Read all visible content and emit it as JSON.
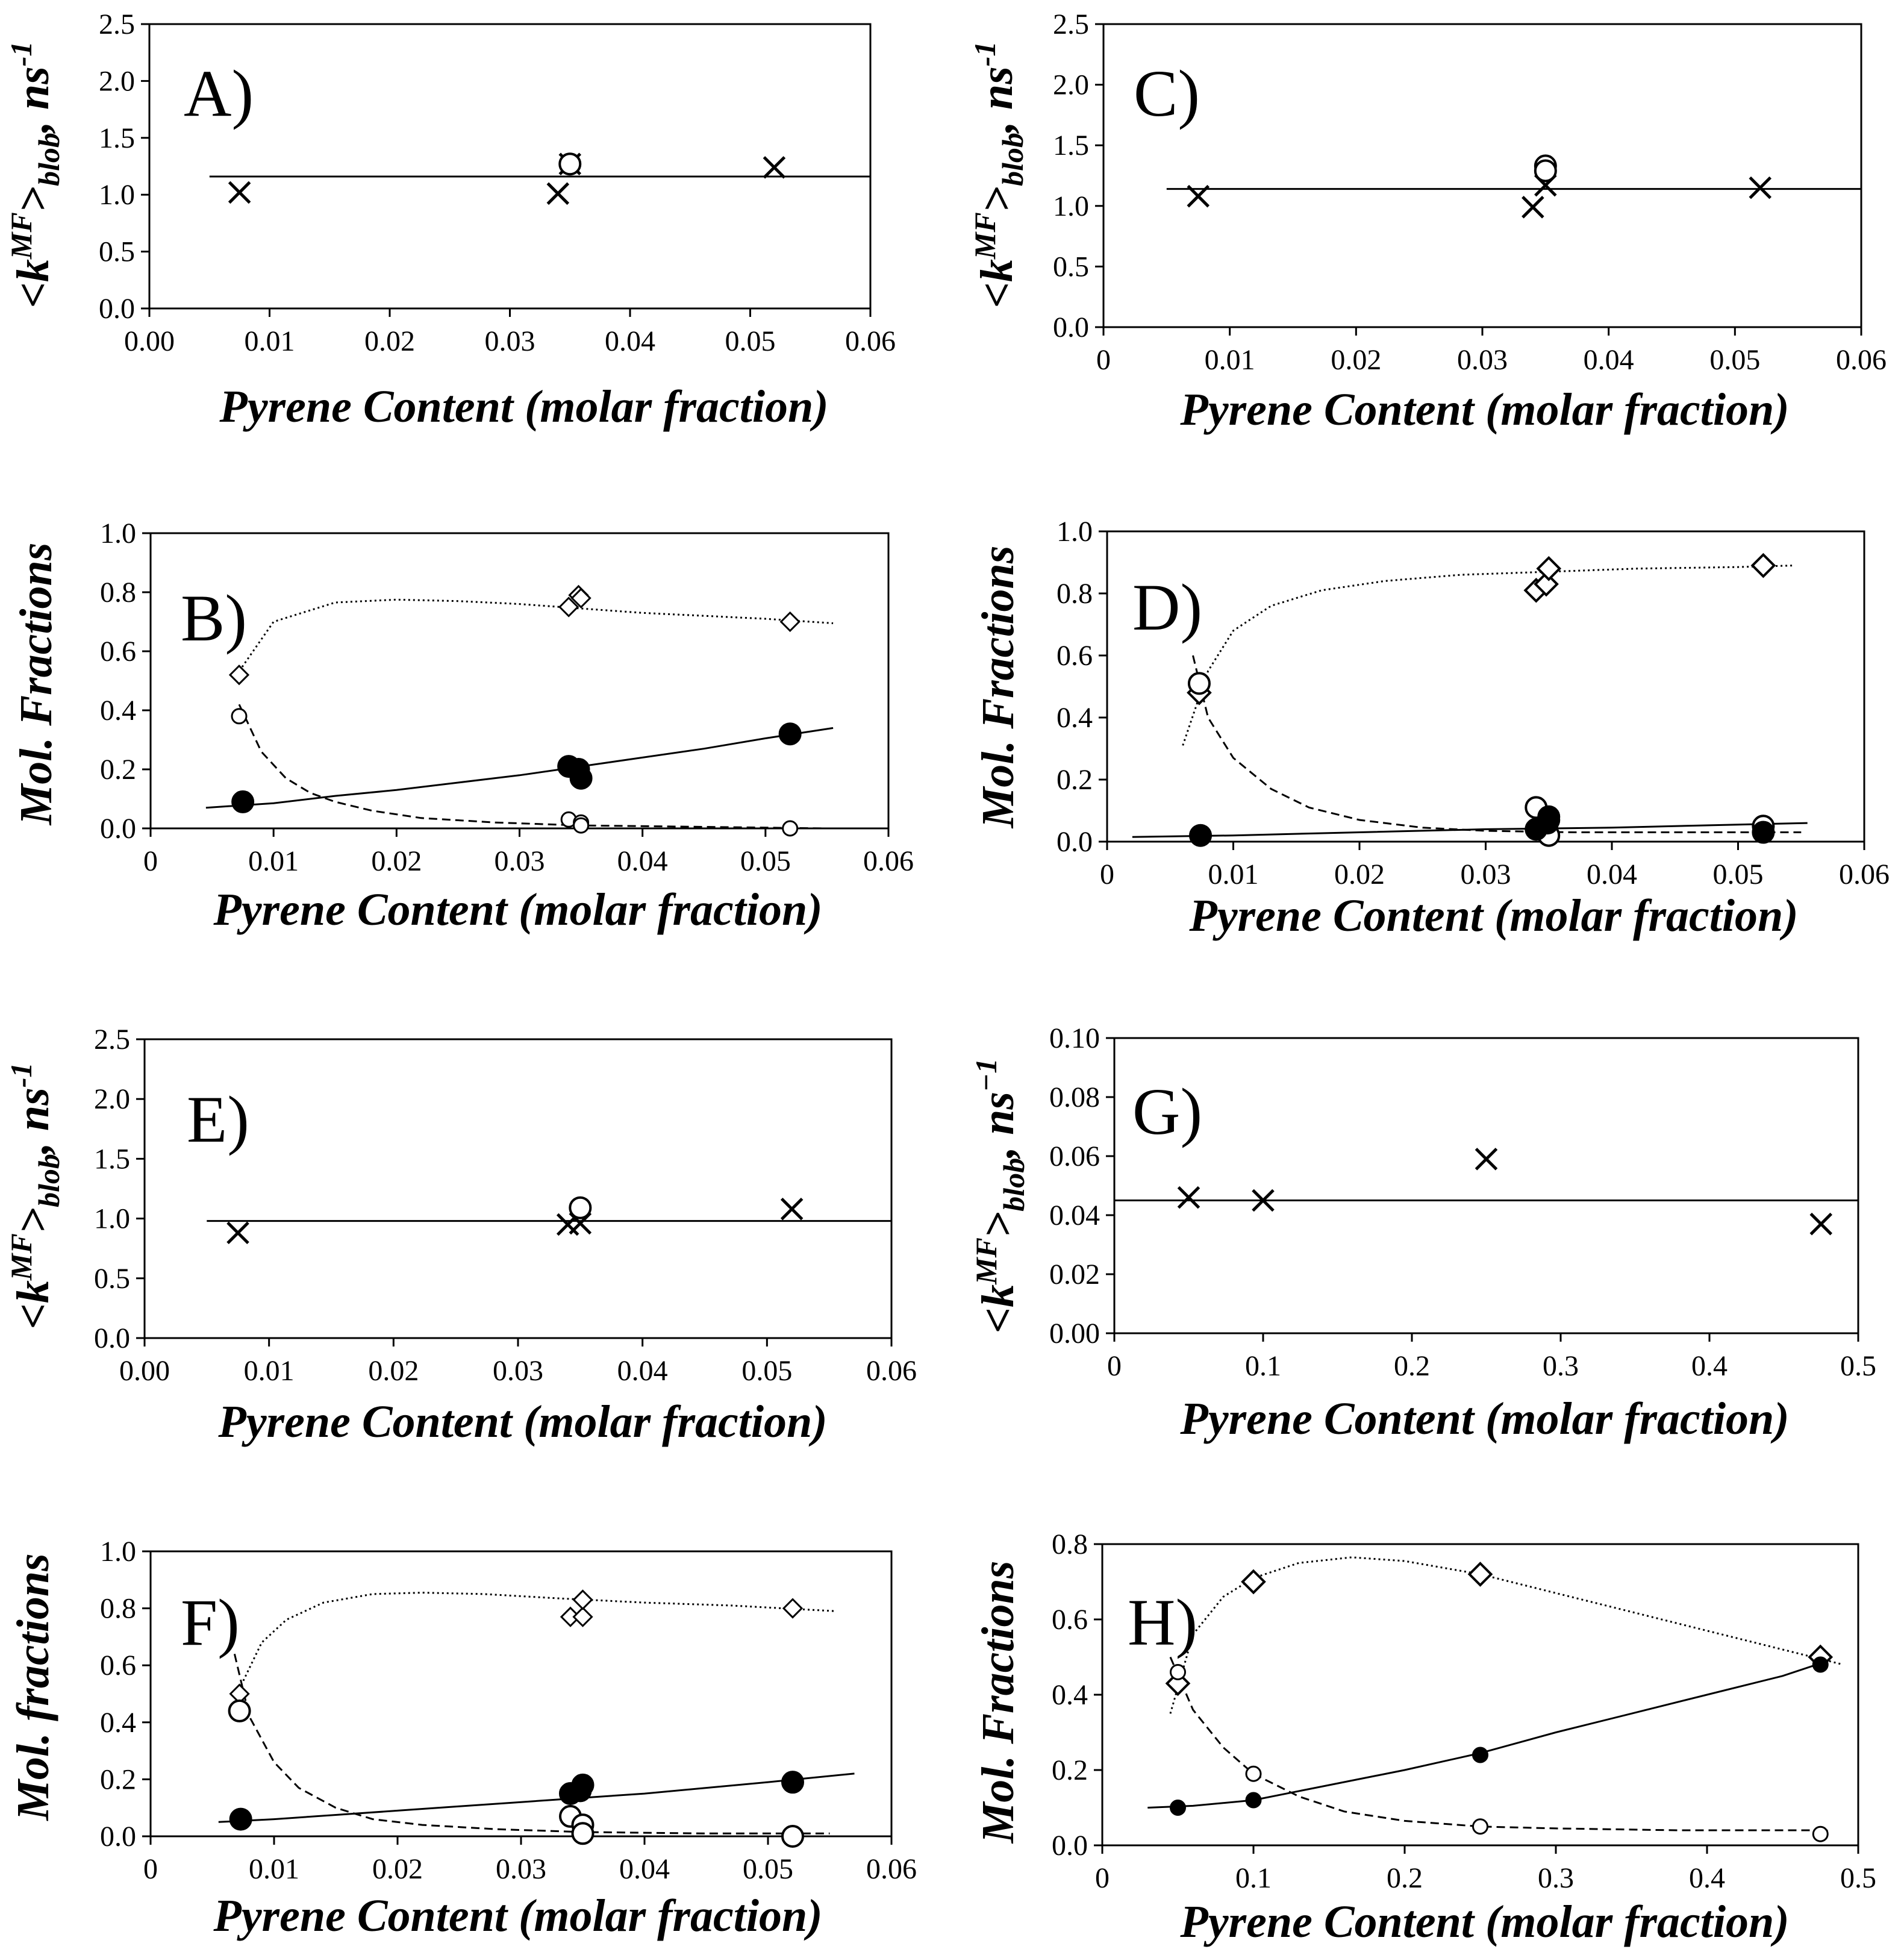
{
  "chart_data": [
    {
      "id": "A",
      "type": "scatter",
      "panel_label": "A)",
      "xlabel": "Pyrene Content (molar fraction)",
      "ylabel": {
        "pre": "<k",
        "sup": "MF",
        "mid": ">",
        "sub": "blob",
        "post": ", ns",
        "unit_sup": "-1"
      },
      "xlim": [
        0,
        0.06
      ],
      "ylim": [
        0,
        2.5
      ],
      "xticks": [
        "0.00",
        "0.01",
        "0.02",
        "0.03",
        "0.04",
        "0.05",
        "0.06"
      ],
      "yticks": [
        "0.0",
        "0.5",
        "1.0",
        "1.5",
        "2.0",
        "2.5"
      ],
      "series": [
        {
          "name": "x-points",
          "marker": "x",
          "x": [
            0.0075,
            0.034,
            0.035,
            0.052
          ],
          "y": [
            1.02,
            1.01,
            1.27,
            1.24
          ]
        },
        {
          "name": "open-circles",
          "marker": "circle-open",
          "x": [
            0.035
          ],
          "y": [
            1.27
          ]
        }
      ],
      "lines": [
        {
          "style": "solid",
          "x": [
            0.005,
            0.06
          ],
          "y": [
            1.16,
            1.16
          ]
        }
      ]
    },
    {
      "id": "C",
      "type": "scatter",
      "panel_label": "C)",
      "xlabel": "Pyrene Content (molar fraction)",
      "ylabel": {
        "pre": "<k",
        "sup": "MF",
        "mid": ">",
        "sub": "blob",
        "post": ", ns",
        "unit_sup": "-1"
      },
      "xlim": [
        0,
        0.06
      ],
      "ylim": [
        0,
        2.5
      ],
      "xticks": [
        "0",
        "0.01",
        "0.02",
        "0.03",
        "0.04",
        "0.05",
        "0.06"
      ],
      "yticks": [
        "0.0",
        "0.5",
        "1.0",
        "1.5",
        "2.0",
        "2.5"
      ],
      "series": [
        {
          "name": "x-points",
          "marker": "x",
          "x": [
            0.0075,
            0.034,
            0.035,
            0.052
          ],
          "y": [
            1.08,
            0.99,
            1.17,
            1.15
          ]
        },
        {
          "name": "open-circles",
          "marker": "circle-open",
          "x": [
            0.035,
            0.035
          ],
          "y": [
            1.33,
            1.29
          ]
        }
      ],
      "lines": [
        {
          "style": "solid",
          "x": [
            0.005,
            0.06
          ],
          "y": [
            1.14,
            1.14
          ]
        }
      ]
    },
    {
      "id": "B",
      "type": "scatter",
      "panel_label": "B)",
      "xlabel": "Pyrene Content (molar fraction)",
      "ylabel": {
        "pre": "Mol. Fractions"
      },
      "xlim": [
        0,
        0.06
      ],
      "ylim": [
        0,
        1.0
      ],
      "xticks": [
        "0",
        "0.01",
        "0.02",
        "0.03",
        "0.04",
        "0.05",
        "0.06"
      ],
      "yticks": [
        "0.0",
        "0.2",
        "0.4",
        "0.6",
        "0.8",
        "1.0"
      ],
      "series": [
        {
          "name": "diamonds",
          "marker": "diamond-open-small",
          "x": [
            0.0072,
            0.034,
            0.0348,
            0.035,
            0.052
          ],
          "y": [
            0.52,
            0.75,
            0.79,
            0.78,
            0.7
          ]
        },
        {
          "name": "open-circles",
          "marker": "circle-open-small",
          "x": [
            0.0072,
            0.034,
            0.035,
            0.035,
            0.052
          ],
          "y": [
            0.38,
            0.03,
            0.02,
            0.01,
            0.0
          ]
        },
        {
          "name": "filled-circles",
          "marker": "circle-filled",
          "x": [
            0.0075,
            0.034,
            0.0348,
            0.035,
            0.052
          ],
          "y": [
            0.09,
            0.21,
            0.2,
            0.17,
            0.32
          ]
        }
      ],
      "lines": [
        {
          "style": "dotted",
          "x": [
            0.007,
            0.01,
            0.015,
            0.02,
            0.025,
            0.03,
            0.035,
            0.04,
            0.045,
            0.05,
            0.0555
          ],
          "y": [
            0.52,
            0.7,
            0.765,
            0.775,
            0.77,
            0.76,
            0.745,
            0.73,
            0.72,
            0.71,
            0.695
          ]
        },
        {
          "style": "dashed",
          "x": [
            0.0072,
            0.009,
            0.011,
            0.013,
            0.015,
            0.018,
            0.022,
            0.028,
            0.035,
            0.045,
            0.055
          ],
          "y": [
            0.42,
            0.26,
            0.17,
            0.12,
            0.09,
            0.06,
            0.035,
            0.02,
            0.01,
            0.005,
            0.0
          ]
        },
        {
          "style": "solid",
          "x": [
            0.0045,
            0.01,
            0.015,
            0.02,
            0.025,
            0.03,
            0.035,
            0.04,
            0.045,
            0.05,
            0.0555
          ],
          "y": [
            0.07,
            0.085,
            0.11,
            0.13,
            0.155,
            0.18,
            0.21,
            0.24,
            0.27,
            0.305,
            0.34
          ]
        }
      ]
    },
    {
      "id": "D",
      "type": "scatter",
      "panel_label": "D)",
      "xlabel": "Pyrene Content (molar fraction)",
      "ylabel": {
        "pre": "Mol. Fractions"
      },
      "xlim": [
        0,
        0.06
      ],
      "ylim": [
        0,
        1.0
      ],
      "xticks": [
        "0",
        "0.01",
        "0.02",
        "0.03",
        "0.04",
        "0.05",
        "0.06"
      ],
      "yticks": [
        "0.0",
        "0.2",
        "0.4",
        "0.6",
        "0.8",
        "1.0"
      ],
      "series": [
        {
          "name": "diamonds",
          "marker": "diamond-open",
          "x": [
            0.0073,
            0.034,
            0.0348,
            0.035,
            0.052
          ],
          "y": [
            0.48,
            0.81,
            0.83,
            0.88,
            0.89
          ]
        },
        {
          "name": "open-circles",
          "marker": "circle-open",
          "x": [
            0.0073,
            0.034,
            0.035,
            0.035,
            0.052
          ],
          "y": [
            0.51,
            0.11,
            0.07,
            0.02,
            0.05
          ]
        },
        {
          "name": "filled-circles",
          "marker": "circle-filled",
          "x": [
            0.0074,
            0.034,
            0.0349,
            0.035,
            0.052
          ],
          "y": [
            0.02,
            0.04,
            0.06,
            0.08,
            0.03
          ]
        }
      ],
      "lines": [
        {
          "style": "dotted",
          "x": [
            0.006,
            0.008,
            0.01,
            0.013,
            0.017,
            0.022,
            0.028,
            0.035,
            0.042,
            0.05,
            0.0545
          ],
          "y": [
            0.31,
            0.55,
            0.68,
            0.76,
            0.81,
            0.84,
            0.86,
            0.87,
            0.88,
            0.885,
            0.89
          ]
        },
        {
          "style": "dashed",
          "x": [
            0.0068,
            0.008,
            0.01,
            0.013,
            0.016,
            0.02,
            0.025,
            0.03,
            0.037,
            0.045,
            0.055
          ],
          "y": [
            0.6,
            0.4,
            0.27,
            0.17,
            0.11,
            0.07,
            0.045,
            0.035,
            0.03,
            0.03,
            0.03
          ]
        },
        {
          "style": "solid",
          "x": [
            0.002,
            0.01,
            0.02,
            0.03,
            0.04,
            0.05,
            0.0555
          ],
          "y": [
            0.015,
            0.02,
            0.03,
            0.04,
            0.045,
            0.055,
            0.06
          ]
        }
      ]
    },
    {
      "id": "E",
      "type": "scatter",
      "panel_label": "E)",
      "xlabel": "Pyrene Content (molar fraction)",
      "ylabel": {
        "pre": "<k",
        "sup": "MF",
        "mid": ">",
        "sub": "blob",
        "post": ", ns",
        "unit_sup": "-1"
      },
      "xlim": [
        0,
        0.06
      ],
      "ylim": [
        0,
        2.5
      ],
      "xticks": [
        "0.00",
        "0.01",
        "0.02",
        "0.03",
        "0.04",
        "0.05",
        "0.06"
      ],
      "yticks": [
        "0.0",
        "0.5",
        "1.0",
        "1.5",
        "2.0",
        "2.5"
      ],
      "series": [
        {
          "name": "x-points",
          "marker": "x",
          "x": [
            0.0075,
            0.034,
            0.035,
            0.052
          ],
          "y": [
            0.88,
            0.95,
            0.96,
            1.08
          ]
        },
        {
          "name": "open-circles",
          "marker": "circle-open",
          "x": [
            0.035
          ],
          "y": [
            1.09
          ]
        }
      ],
      "lines": [
        {
          "style": "solid",
          "x": [
            0.005,
            0.06
          ],
          "y": [
            0.98,
            0.98
          ]
        }
      ]
    },
    {
      "id": "G",
      "type": "scatter",
      "panel_label": "G)",
      "xlabel": "Pyrene Content (molar fraction)",
      "ylabel": {
        "pre": "<k",
        "sup": "MF",
        "mid": ">",
        "sub": "blob",
        "post": ", ns",
        "unit_sup": "−1"
      },
      "xlim": [
        0,
        0.5
      ],
      "ylim": [
        0,
        0.1
      ],
      "xticks": [
        "0",
        "0.1",
        "0.2",
        "0.3",
        "0.4",
        "0.5"
      ],
      "yticks": [
        "0.00",
        "0.02",
        "0.04",
        "0.06",
        "0.08",
        "0.10"
      ],
      "series": [
        {
          "name": "x-points",
          "marker": "x",
          "x": [
            0.05,
            0.1,
            0.25,
            0.475
          ],
          "y": [
            0.046,
            0.045,
            0.059,
            0.037
          ]
        }
      ],
      "lines": [
        {
          "style": "solid",
          "x": [
            0,
            0.5
          ],
          "y": [
            0.045,
            0.045
          ]
        }
      ]
    },
    {
      "id": "F",
      "type": "scatter",
      "panel_label": "F)",
      "xlabel": "Pyrene Content (molar fraction)",
      "ylabel": {
        "pre": "Mol. fractions"
      },
      "xlim": [
        0,
        0.06
      ],
      "ylim": [
        0,
        1.0
      ],
      "xticks": [
        "0",
        "0.01",
        "0.02",
        "0.03",
        "0.04",
        "0.05",
        "0.06"
      ],
      "yticks": [
        "0.0",
        "0.2",
        "0.4",
        "0.6",
        "0.8",
        "1.0"
      ],
      "series": [
        {
          "name": "diamonds",
          "marker": "diamond-open-small",
          "x": [
            0.0072,
            0.034,
            0.035,
            0.035,
            0.052
          ],
          "y": [
            0.5,
            0.77,
            0.77,
            0.83,
            0.8
          ]
        },
        {
          "name": "open-circles",
          "marker": "circle-open",
          "x": [
            0.0072,
            0.034,
            0.035,
            0.035,
            0.052
          ],
          "y": [
            0.44,
            0.07,
            0.04,
            0.01,
            0.0
          ]
        },
        {
          "name": "filled-circles",
          "marker": "circle-filled",
          "x": [
            0.0073,
            0.034,
            0.0348,
            0.035,
            0.052
          ],
          "y": [
            0.06,
            0.15,
            0.16,
            0.18,
            0.19
          ]
        }
      ],
      "lines": [
        {
          "style": "dotted",
          "x": [
            0.007,
            0.009,
            0.011,
            0.014,
            0.018,
            0.022,
            0.027,
            0.033,
            0.04,
            0.047,
            0.0555
          ],
          "y": [
            0.5,
            0.68,
            0.76,
            0.82,
            0.85,
            0.855,
            0.85,
            0.835,
            0.82,
            0.81,
            0.79
          ]
        },
        {
          "style": "dashed",
          "x": [
            0.0068,
            0.008,
            0.01,
            0.012,
            0.015,
            0.018,
            0.022,
            0.028,
            0.035,
            0.045,
            0.055
          ],
          "y": [
            0.64,
            0.42,
            0.26,
            0.17,
            0.1,
            0.06,
            0.04,
            0.025,
            0.015,
            0.01,
            0.01
          ]
        },
        {
          "style": "solid",
          "x": [
            0.0055,
            0.01,
            0.015,
            0.02,
            0.025,
            0.03,
            0.035,
            0.04,
            0.045,
            0.05,
            0.057
          ],
          "y": [
            0.05,
            0.06,
            0.075,
            0.09,
            0.105,
            0.12,
            0.135,
            0.15,
            0.17,
            0.19,
            0.22
          ]
        }
      ]
    },
    {
      "id": "H",
      "type": "scatter",
      "panel_label": "H)",
      "xlabel": "Pyrene Content (molar fraction)",
      "ylabel": {
        "pre": "Mol. Fractions"
      },
      "xlim": [
        0,
        0.5
      ],
      "ylim": [
        0,
        0.8
      ],
      "xticks": [
        "0",
        "0.1",
        "0.2",
        "0.3",
        "0.4",
        "0.5"
      ],
      "yticks": [
        "0.0",
        "0.2",
        "0.4",
        "0.6",
        "0.8"
      ],
      "series": [
        {
          "name": "diamonds",
          "marker": "diamond-open",
          "x": [
            0.05,
            0.1,
            0.25,
            0.475
          ],
          "y": [
            0.43,
            0.7,
            0.72,
            0.5
          ]
        },
        {
          "name": "open-circles",
          "marker": "circle-open-small",
          "x": [
            0.05,
            0.1,
            0.25,
            0.475
          ],
          "y": [
            0.46,
            0.19,
            0.05,
            0.03
          ]
        },
        {
          "name": "filled-circles",
          "marker": "circle-filled-small",
          "x": [
            0.05,
            0.1,
            0.25,
            0.475
          ],
          "y": [
            0.1,
            0.12,
            0.24,
            0.48
          ]
        }
      ],
      "lines": [
        {
          "style": "dotted",
          "x": [
            0.045,
            0.06,
            0.08,
            0.1,
            0.13,
            0.165,
            0.2,
            0.25,
            0.3,
            0.35,
            0.4,
            0.45,
            0.49
          ],
          "y": [
            0.35,
            0.56,
            0.66,
            0.71,
            0.75,
            0.765,
            0.755,
            0.72,
            0.67,
            0.62,
            0.57,
            0.52,
            0.48
          ]
        },
        {
          "style": "dashed",
          "x": [
            0.045,
            0.06,
            0.08,
            0.1,
            0.13,
            0.16,
            0.2,
            0.25,
            0.3,
            0.38,
            0.48
          ],
          "y": [
            0.5,
            0.36,
            0.26,
            0.19,
            0.13,
            0.09,
            0.065,
            0.05,
            0.045,
            0.04,
            0.04
          ]
        },
        {
          "style": "solid",
          "x": [
            0.03,
            0.06,
            0.1,
            0.15,
            0.2,
            0.25,
            0.3,
            0.35,
            0.4,
            0.45,
            0.48
          ],
          "y": [
            0.1,
            0.105,
            0.12,
            0.16,
            0.2,
            0.245,
            0.3,
            0.35,
            0.4,
            0.45,
            0.49
          ]
        }
      ]
    }
  ]
}
